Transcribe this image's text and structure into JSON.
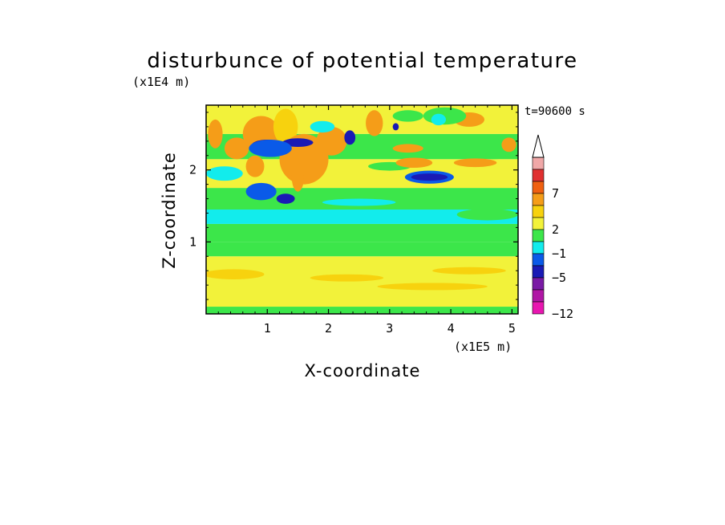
{
  "chart_data": {
    "type": "heatmap",
    "title": "disturbunce of potential temperature",
    "xlabel": "X-coordinate",
    "ylabel": "Z-coordinate",
    "x_unit": "(x1E5 m)",
    "y_unit": "(x1E4 m)",
    "time_label": "t=90600 s",
    "xlim": [
      0,
      5.1
    ],
    "ylim": [
      0,
      2.9
    ],
    "x_ticks": [
      "1",
      "2",
      "3",
      "4",
      "5"
    ],
    "y_ticks": [
      "1",
      "2"
    ],
    "colorbar": {
      "labels": [
        "7",
        "2",
        "−1",
        "−5",
        "−12"
      ],
      "colors": [
        "#f0a8a8",
        "#e03030",
        "#f06010",
        "#f59d18",
        "#f7d20e",
        "#f2f23a",
        "#3ce64a",
        "#12ecec",
        "#0a5ae8",
        "#1a1ab5",
        "#7a1aa5",
        "#b016a5",
        "#e816b0"
      ],
      "extend_top": true
    },
    "bands": [
      {
        "z": [
          0.0,
          0.1
        ],
        "color": "#3ce64a"
      },
      {
        "z": [
          0.1,
          0.8
        ],
        "color": "#f2f23a"
      },
      {
        "z": [
          0.8,
          1.0
        ],
        "color": "#3ce64a"
      },
      {
        "z": [
          1.0,
          1.25
        ],
        "color": "#3ce64a"
      },
      {
        "z": [
          1.25,
          1.45
        ],
        "color": "#12ecec"
      },
      {
        "z": [
          1.45,
          1.75
        ],
        "color": "#3ce64a"
      },
      {
        "z": [
          1.75,
          2.15
        ],
        "color": "#f2f23a"
      },
      {
        "z": [
          2.15,
          2.5
        ],
        "color": "#3ce64a"
      },
      {
        "z": [
          2.5,
          2.9
        ],
        "color": "#f2f23a"
      }
    ],
    "features": [
      {
        "x": 0.45,
        "z": 0.55,
        "rx": 0.5,
        "rz": 0.07,
        "color": "#f7d20e"
      },
      {
        "x": 2.3,
        "z": 0.5,
        "rx": 0.6,
        "rz": 0.05,
        "color": "#f7d20e"
      },
      {
        "x": 3.7,
        "z": 0.38,
        "rx": 0.9,
        "rz": 0.05,
        "color": "#f7d20e"
      },
      {
        "x": 4.3,
        "z": 0.6,
        "rx": 0.6,
        "rz": 0.05,
        "color": "#f7d20e"
      },
      {
        "x": 0.3,
        "z": 1.95,
        "rx": 0.3,
        "rz": 0.1,
        "color": "#12ecec"
      },
      {
        "x": 2.5,
        "z": 1.55,
        "rx": 0.6,
        "rz": 0.05,
        "color": "#12ecec"
      },
      {
        "x": 4.6,
        "z": 1.38,
        "rx": 0.5,
        "rz": 0.08,
        "color": "#3ce64a"
      },
      {
        "x": 0.15,
        "z": 2.5,
        "rx": 0.12,
        "rz": 0.2,
        "color": "#f59d18"
      },
      {
        "x": 0.5,
        "z": 2.3,
        "rx": 0.2,
        "rz": 0.15,
        "color": "#f59d18"
      },
      {
        "x": 0.9,
        "z": 2.5,
        "rx": 0.3,
        "rz": 0.25,
        "color": "#f59d18"
      },
      {
        "x": 1.3,
        "z": 2.6,
        "rx": 0.2,
        "rz": 0.25,
        "color": "#f7d20e"
      },
      {
        "x": 1.6,
        "z": 2.15,
        "rx": 0.4,
        "rz": 0.35,
        "color": "#f59d18"
      },
      {
        "x": 2.05,
        "z": 2.4,
        "rx": 0.25,
        "rz": 0.2,
        "color": "#f59d18"
      },
      {
        "x": 1.0,
        "z": 2.35,
        "rx": 0.25,
        "rz": 0.07,
        "color": "#1a1ab5"
      },
      {
        "x": 1.5,
        "z": 2.38,
        "rx": 0.25,
        "rz": 0.06,
        "color": "#1a1ab5"
      },
      {
        "x": 1.05,
        "z": 2.3,
        "rx": 0.35,
        "rz": 0.12,
        "color": "#0a5ae8"
      },
      {
        "x": 1.9,
        "z": 2.6,
        "rx": 0.2,
        "rz": 0.08,
        "color": "#12ecec"
      },
      {
        "x": 2.35,
        "z": 2.45,
        "rx": 0.09,
        "rz": 0.1,
        "color": "#1a1ab5"
      },
      {
        "x": 2.75,
        "z": 2.65,
        "rx": 0.14,
        "rz": 0.18,
        "color": "#f59d18"
      },
      {
        "x": 3.1,
        "z": 2.6,
        "rx": 0.05,
        "rz": 0.05,
        "color": "#1a1ab5"
      },
      {
        "x": 3.65,
        "z": 1.9,
        "rx": 0.4,
        "rz": 0.09,
        "color": "#0a5ae8"
      },
      {
        "x": 3.65,
        "z": 1.9,
        "rx": 0.3,
        "rz": 0.05,
        "color": "#1a1ab5"
      },
      {
        "x": 3.0,
        "z": 2.05,
        "rx": 0.35,
        "rz": 0.06,
        "color": "#3ce64a"
      },
      {
        "x": 3.4,
        "z": 2.1,
        "rx": 0.3,
        "rz": 0.07,
        "color": "#f59d18"
      },
      {
        "x": 3.3,
        "z": 2.3,
        "rx": 0.25,
        "rz": 0.06,
        "color": "#f59d18"
      },
      {
        "x": 4.4,
        "z": 2.1,
        "rx": 0.35,
        "rz": 0.06,
        "color": "#f59d18"
      },
      {
        "x": 4.7,
        "z": 2.2,
        "rx": 0.3,
        "rz": 0.05,
        "color": "#3ce64a"
      },
      {
        "x": 4.3,
        "z": 2.7,
        "rx": 0.25,
        "rz": 0.1,
        "color": "#f59d18"
      },
      {
        "x": 4.95,
        "z": 2.35,
        "rx": 0.12,
        "rz": 0.1,
        "color": "#f59d18"
      },
      {
        "x": 3.3,
        "z": 2.75,
        "rx": 0.25,
        "rz": 0.08,
        "color": "#3ce64a"
      },
      {
        "x": 3.9,
        "z": 2.75,
        "rx": 0.35,
        "rz": 0.12,
        "color": "#3ce64a"
      },
      {
        "x": 3.8,
        "z": 2.7,
        "rx": 0.12,
        "rz": 0.08,
        "color": "#12ecec"
      },
      {
        "x": 2.75,
        "z": 2.35,
        "rx": 0.35,
        "rz": 0.08,
        "color": "#3ce64a"
      },
      {
        "x": 0.9,
        "z": 1.7,
        "rx": 0.25,
        "rz": 0.12,
        "color": "#0a5ae8"
      },
      {
        "x": 1.3,
        "z": 1.6,
        "rx": 0.15,
        "rz": 0.07,
        "color": "#1a1ab5"
      },
      {
        "x": 0.8,
        "z": 2.05,
        "rx": 0.15,
        "rz": 0.15,
        "color": "#f59d18"
      },
      {
        "x": 1.5,
        "z": 1.9,
        "rx": 0.1,
        "rz": 0.2,
        "color": "#f59d18"
      }
    ]
  }
}
